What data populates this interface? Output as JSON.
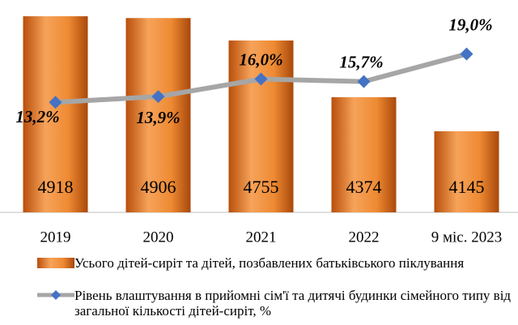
{
  "chart_data": {
    "type": "bar-line",
    "categories": [
      "2019",
      "2020",
      "2021",
      "2022",
      "9 міс. 2023"
    ],
    "series": [
      {
        "name": "Усього дітей-сиріт та дітей, позбавлених батьківського піклування",
        "type": "bar",
        "color": "#e46c0a",
        "values": [
          4918,
          4906,
          4755,
          4374,
          4145
        ]
      },
      {
        "name": "Рівень влаштування в прийомні сім'ї та дитячі будинки сімейного типу від загальної кількості дітей-сиріт, %",
        "type": "line",
        "axis": "y2",
        "color": "#a6a6a6",
        "marker_color": "#4472c4",
        "values": [
          13.2,
          13.9,
          16.0,
          15.7,
          19.0
        ],
        "value_labels": [
          "13,2%",
          "13,9%",
          "16,0%",
          "15,7%",
          "19,0%"
        ]
      }
    ],
    "ylim": [
      3600,
      5000
    ],
    "y2lim": [
      0,
      25
    ],
    "legend": "bottom"
  }
}
